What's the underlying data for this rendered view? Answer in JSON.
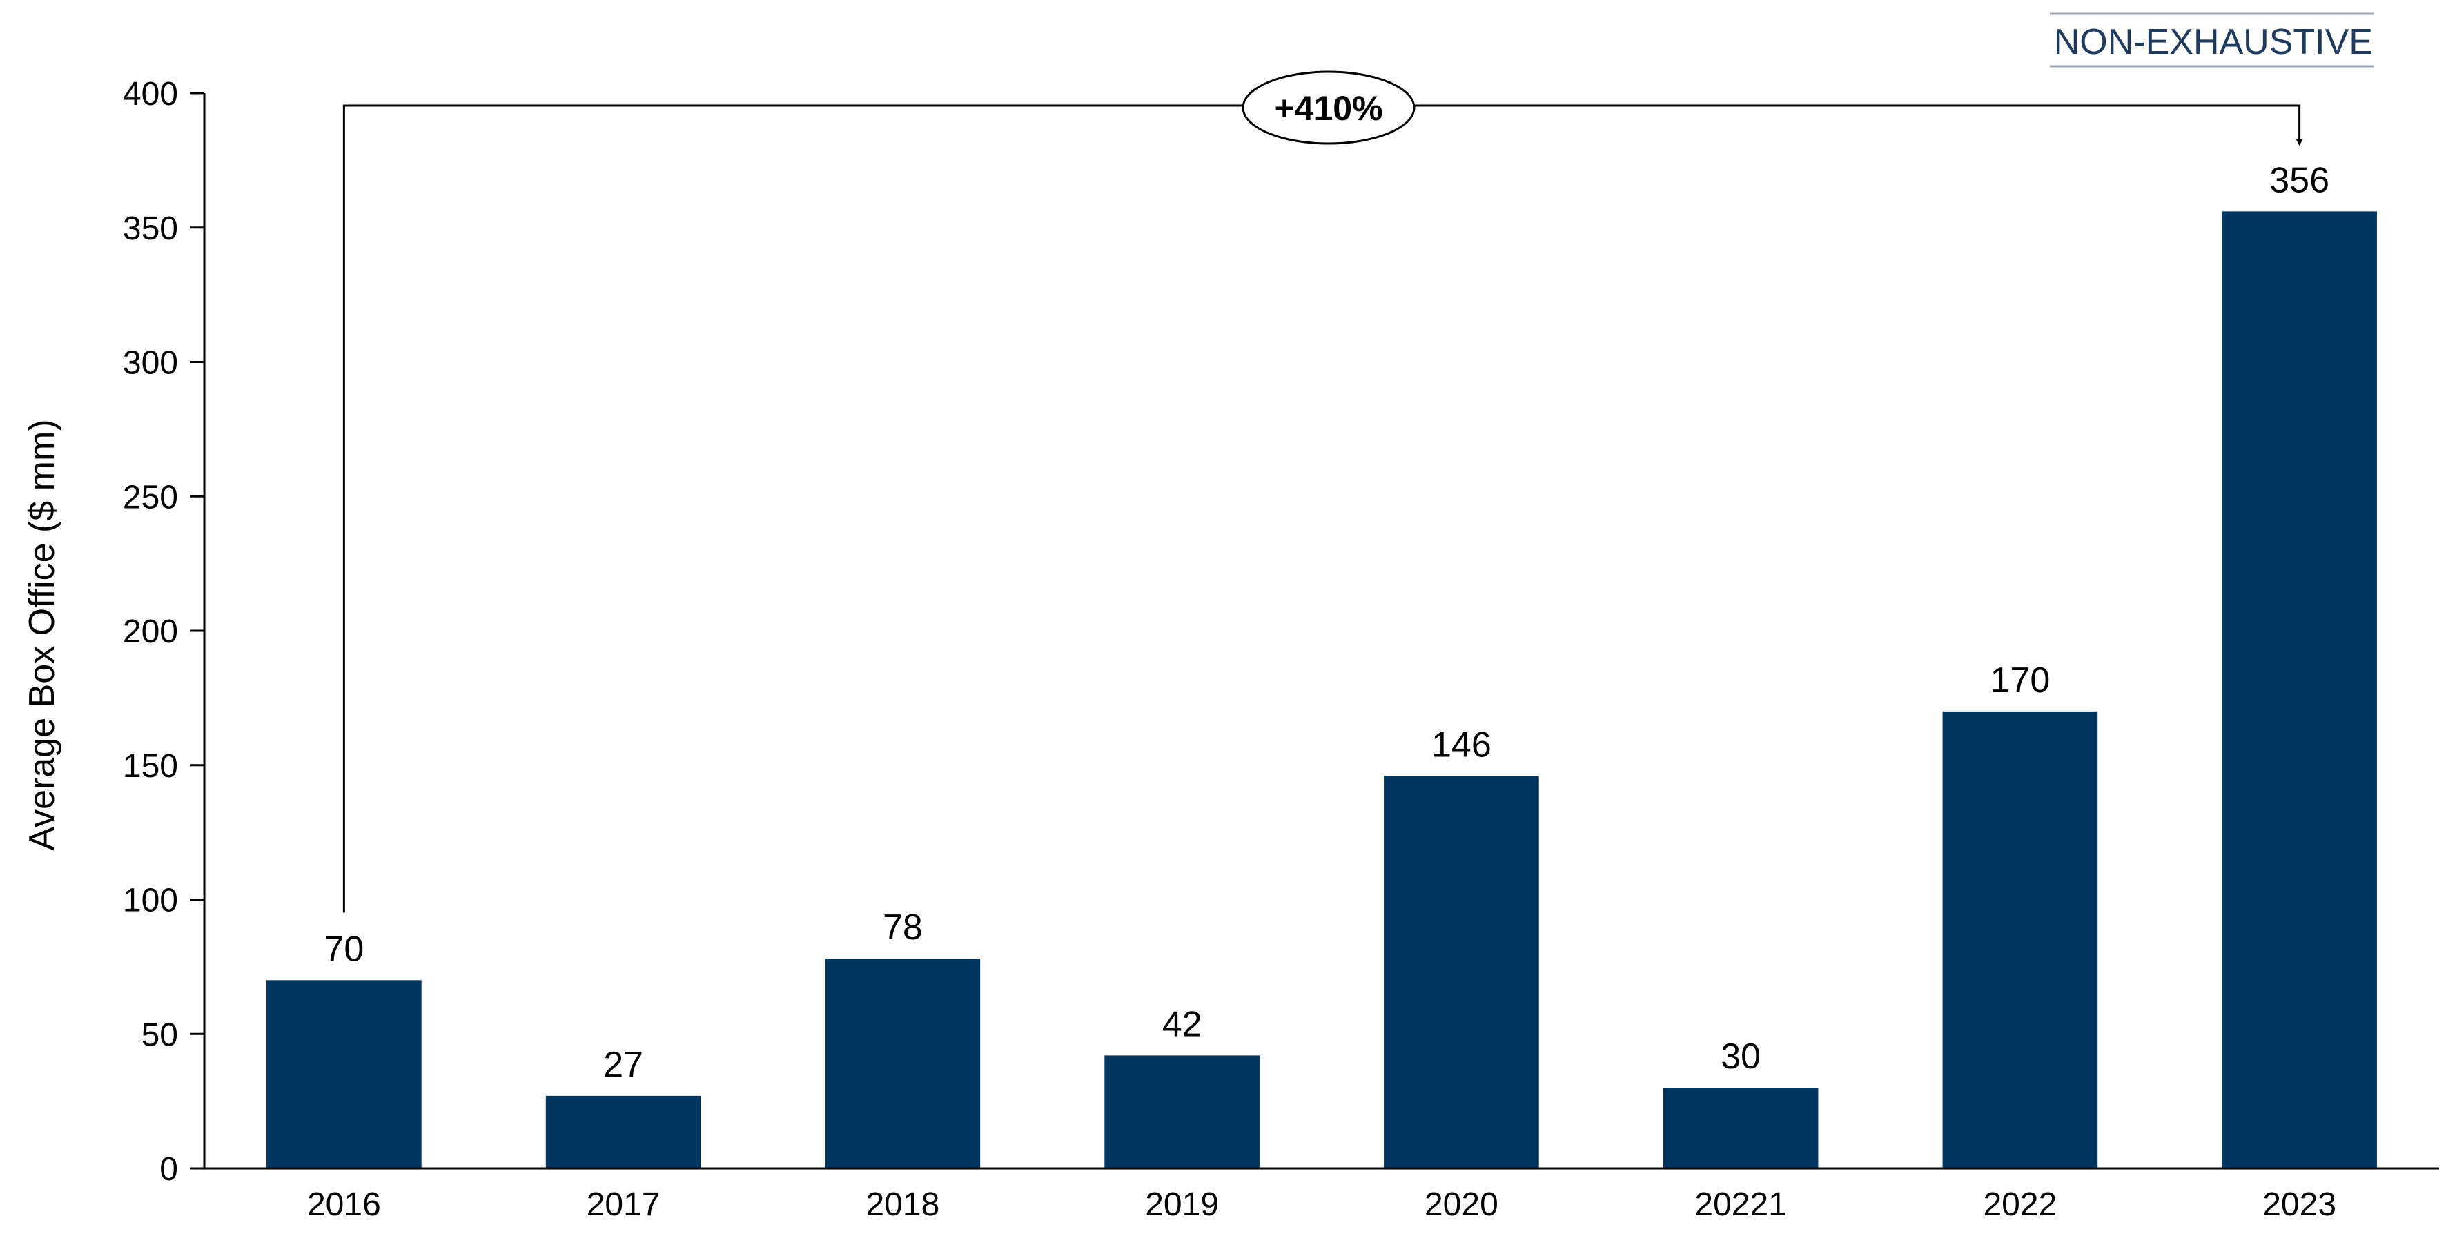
{
  "badge": "NON-EXHAUSTIVE",
  "chart_data": {
    "type": "bar",
    "title": "",
    "xlabel": "",
    "ylabel": "Average Box Office ($ mm)",
    "categories": [
      "2016",
      "2017",
      "2018",
      "2019",
      "2020",
      "20221",
      "2022",
      "2023"
    ],
    "values": [
      70,
      27,
      78,
      42,
      146,
      30,
      170,
      356
    ],
    "data_labels": [
      "70",
      "27",
      "78",
      "42",
      "146",
      "30",
      "170",
      "356"
    ],
    "ylim": [
      0,
      400
    ],
    "yticks": [
      "0",
      "50",
      "100",
      "150",
      "200",
      "250",
      "300",
      "350",
      "400"
    ],
    "grid": false,
    "bar_color": "#00365f",
    "annotations": [
      {
        "type": "growth-arrow",
        "from": "2016",
        "to": "2023",
        "label": "+410%"
      }
    ]
  }
}
